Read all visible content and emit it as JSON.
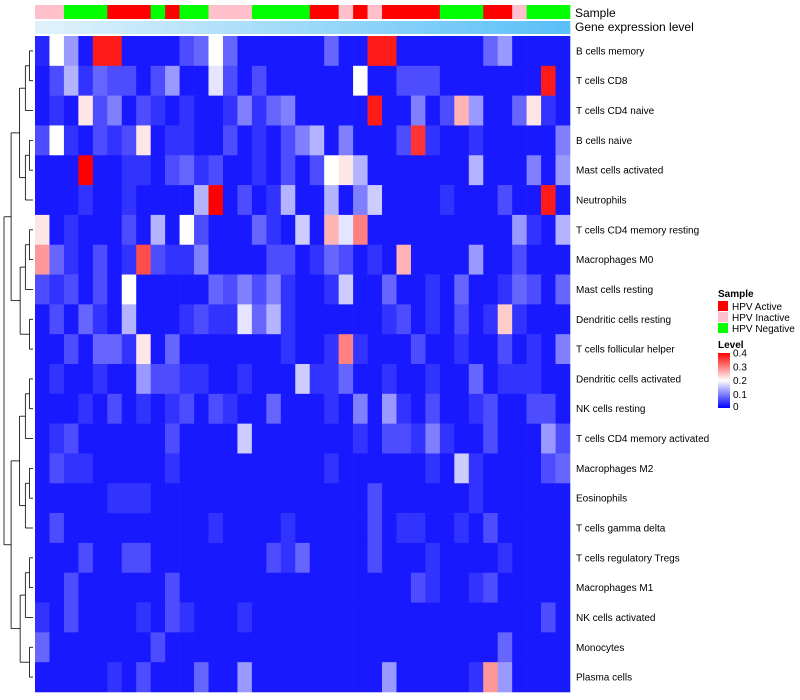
{
  "chart_data": {
    "type": "heatmap",
    "title": "",
    "rows": [
      "B cells memory",
      "T cells CD8",
      "T cells CD4 naive",
      "B cells naive",
      "Mast cells activated",
      "Neutrophils",
      "T cells CD4 memory resting",
      "Macrophages M0",
      "Mast cells resting",
      "Dendritic cells resting",
      "T cells follicular helper",
      "Dendritic cells activated",
      "NK cells resting",
      "T cells CD4 memory activated",
      "Macrophages M2",
      "Eosinophils",
      "T cells gamma delta",
      "T cells regulatory  Tregs",
      "Macrophages M1",
      "NK cells activated",
      "Monocytes",
      "Plasma cells"
    ],
    "annotation_tracks": [
      {
        "name": "Sample",
        "values": [
          "HPV Inactive",
          "HPV Inactive",
          "HPV Negative",
          "HPV Negative",
          "HPV Negative",
          "HPV Active",
          "HPV Active",
          "HPV Active",
          "HPV Negative",
          "HPV Active",
          "HPV Negative",
          "HPV Negative",
          "HPV Inactive",
          "HPV Inactive",
          "HPV Inactive",
          "HPV Negative",
          "HPV Negative",
          "HPV Negative",
          "HPV Negative",
          "HPV Active",
          "HPV Active",
          "HPV Inactive",
          "HPV Active",
          "HPV Inactive",
          "HPV Active",
          "HPV Active",
          "HPV Active",
          "HPV Active",
          "HPV Negative",
          "HPV Negative",
          "HPV Negative",
          "HPV Active",
          "HPV Active",
          "HPV Inactive",
          "HPV Negative",
          "HPV Negative",
          "HPV Negative"
        ]
      },
      {
        "name": "Gene expression level",
        "values": [
          0.9,
          0.88,
          0.86,
          0.84,
          0.82,
          0.8,
          0.78,
          0.76,
          0.74,
          0.72,
          0.7,
          0.68,
          0.66,
          0.64,
          0.62,
          0.6,
          0.58,
          0.56,
          0.54,
          0.52,
          0.5,
          0.48,
          0.46,
          0.44,
          0.42,
          0.4,
          0.38,
          0.36,
          0.34,
          0.32,
          0.3,
          0.28,
          0.26,
          0.24,
          0.22,
          0.2,
          0.18
        ]
      }
    ],
    "values": [
      [
        0.03,
        0.2,
        0.12,
        0.02,
        0.38,
        0.38,
        0.02,
        0.02,
        0.02,
        0.02,
        0.06,
        0.08,
        0.2,
        0.08,
        0.02,
        0.02,
        0.02,
        0.02,
        0.02,
        0.02,
        0.08,
        0.02,
        0.02,
        0.38,
        0.38,
        0.02,
        0.02,
        0.02,
        0.02,
        0.02,
        0.02,
        0.08,
        0.12,
        0.02,
        0.02,
        0.02,
        0.02
      ],
      [
        0.02,
        0.06,
        0.14,
        0.04,
        0.08,
        0.06,
        0.06,
        0.02,
        0.06,
        0.12,
        0.02,
        0.02,
        0.18,
        0.06,
        0.02,
        0.06,
        0.02,
        0.02,
        0.02,
        0.02,
        0.02,
        0.02,
        0.2,
        0.02,
        0.02,
        0.06,
        0.06,
        0.06,
        0.02,
        0.02,
        0.02,
        0.02,
        0.02,
        0.02,
        0.02,
        0.38,
        0.02
      ],
      [
        0.02,
        0.04,
        0.02,
        0.22,
        0.06,
        0.1,
        0.02,
        0.06,
        0.04,
        0.02,
        0.04,
        0.02,
        0.02,
        0.04,
        0.1,
        0.04,
        0.08,
        0.1,
        0.02,
        0.02,
        0.02,
        0.02,
        0.02,
        0.38,
        0.02,
        0.02,
        0.1,
        0.02,
        0.06,
        0.26,
        0.12,
        0.02,
        0.02,
        0.08,
        0.22,
        0.04,
        0.02
      ],
      [
        0.06,
        0.2,
        0.04,
        0.02,
        0.06,
        0.04,
        0.06,
        0.22,
        0.02,
        0.04,
        0.04,
        0.02,
        0.02,
        0.06,
        0.02,
        0.04,
        0.02,
        0.06,
        0.1,
        0.14,
        0.02,
        0.1,
        0.02,
        0.02,
        0.02,
        0.06,
        0.36,
        0.04,
        0.02,
        0.02,
        0.04,
        0.02,
        0.02,
        0.02,
        0.02,
        0.02,
        0.1
      ],
      [
        0.02,
        0.02,
        0.02,
        0.4,
        0.02,
        0.02,
        0.04,
        0.04,
        0.02,
        0.06,
        0.08,
        0.04,
        0.06,
        0.02,
        0.02,
        0.04,
        0.02,
        0.06,
        0.02,
        0.06,
        0.2,
        0.22,
        0.14,
        0.02,
        0.02,
        0.02,
        0.02,
        0.02,
        0.02,
        0.02,
        0.14,
        0.02,
        0.02,
        0.02,
        0.1,
        0.02,
        0.12
      ],
      [
        0.02,
        0.02,
        0.02,
        0.04,
        0.02,
        0.02,
        0.04,
        0.02,
        0.02,
        0.02,
        0.02,
        0.14,
        0.4,
        0.02,
        0.06,
        0.02,
        0.04,
        0.14,
        0.02,
        0.02,
        0.14,
        0.02,
        0.1,
        0.16,
        0.02,
        0.02,
        0.02,
        0.02,
        0.04,
        0.02,
        0.02,
        0.02,
        0.06,
        0.02,
        0.02,
        0.38,
        0.02
      ],
      [
        0.22,
        0.02,
        0.04,
        0.02,
        0.02,
        0.02,
        0.06,
        0.02,
        0.14,
        0.02,
        0.2,
        0.06,
        0.02,
        0.02,
        0.02,
        0.08,
        0.04,
        0.02,
        0.16,
        0.02,
        0.26,
        0.18,
        0.3,
        0.02,
        0.02,
        0.02,
        0.02,
        0.02,
        0.02,
        0.02,
        0.02,
        0.02,
        0.02,
        0.12,
        0.04,
        0.02,
        0.14
      ],
      [
        0.28,
        0.08,
        0.04,
        0.02,
        0.06,
        0.02,
        0.04,
        0.34,
        0.06,
        0.04,
        0.04,
        0.1,
        0.02,
        0.02,
        0.02,
        0.02,
        0.06,
        0.06,
        0.02,
        0.04,
        0.08,
        0.06,
        0.02,
        0.04,
        0.02,
        0.26,
        0.02,
        0.02,
        0.02,
        0.02,
        0.12,
        0.02,
        0.02,
        0.06,
        0.02,
        0.02,
        0.02
      ],
      [
        0.06,
        0.04,
        0.06,
        0.02,
        0.06,
        0.02,
        0.2,
        0.02,
        0.02,
        0.02,
        0.02,
        0.02,
        0.08,
        0.06,
        0.1,
        0.06,
        0.1,
        0.04,
        0.02,
        0.02,
        0.04,
        0.16,
        0.02,
        0.02,
        0.08,
        0.02,
        0.02,
        0.04,
        0.02,
        0.08,
        0.02,
        0.02,
        0.04,
        0.08,
        0.06,
        0.02,
        0.08
      ],
      [
        0.02,
        0.06,
        0.02,
        0.08,
        0.04,
        0.02,
        0.14,
        0.02,
        0.02,
        0.02,
        0.04,
        0.06,
        0.04,
        0.04,
        0.18,
        0.08,
        0.14,
        0.04,
        0.02,
        0.02,
        0.02,
        0.02,
        0.02,
        0.02,
        0.04,
        0.06,
        0.02,
        0.04,
        0.02,
        0.06,
        0.02,
        0.04,
        0.24,
        0.04,
        0.02,
        0.02,
        0.02
      ],
      [
        0.02,
        0.02,
        0.06,
        0.02,
        0.08,
        0.08,
        0.04,
        0.22,
        0.02,
        0.08,
        0.02,
        0.02,
        0.02,
        0.02,
        0.02,
        0.02,
        0.02,
        0.04,
        0.02,
        0.02,
        0.04,
        0.3,
        0.04,
        0.02,
        0.02,
        0.02,
        0.06,
        0.02,
        0.02,
        0.04,
        0.02,
        0.02,
        0.06,
        0.02,
        0.04,
        0.02,
        0.1
      ],
      [
        0.02,
        0.04,
        0.02,
        0.02,
        0.04,
        0.02,
        0.02,
        0.12,
        0.06,
        0.06,
        0.04,
        0.04,
        0.02,
        0.02,
        0.04,
        0.02,
        0.02,
        0.02,
        0.16,
        0.04,
        0.04,
        0.08,
        0.02,
        0.02,
        0.04,
        0.02,
        0.02,
        0.04,
        0.02,
        0.02,
        0.08,
        0.02,
        0.04,
        0.04,
        0.04,
        0.02,
        0.02
      ],
      [
        0.02,
        0.02,
        0.02,
        0.04,
        0.02,
        0.06,
        0.02,
        0.04,
        0.02,
        0.04,
        0.06,
        0.02,
        0.06,
        0.04,
        0.02,
        0.02,
        0.08,
        0.02,
        0.02,
        0.02,
        0.04,
        0.02,
        0.1,
        0.02,
        0.12,
        0.04,
        0.02,
        0.06,
        0.02,
        0.02,
        0.04,
        0.06,
        0.02,
        0.02,
        0.06,
        0.06,
        0.02
      ],
      [
        0.02,
        0.04,
        0.06,
        0.02,
        0.02,
        0.02,
        0.02,
        0.02,
        0.02,
        0.06,
        0.02,
        0.02,
        0.02,
        0.02,
        0.16,
        0.02,
        0.02,
        0.02,
        0.02,
        0.02,
        0.02,
        0.02,
        0.04,
        0.02,
        0.06,
        0.06,
        0.04,
        0.1,
        0.04,
        0.02,
        0.02,
        0.06,
        0.02,
        0.02,
        0.02,
        0.12,
        0.06
      ],
      [
        0.02,
        0.06,
        0.04,
        0.04,
        0.02,
        0.02,
        0.02,
        0.02,
        0.02,
        0.04,
        0.02,
        0.02,
        0.02,
        0.02,
        0.02,
        0.02,
        0.02,
        0.02,
        0.02,
        0.02,
        0.04,
        0.02,
        0.02,
        0.02,
        0.02,
        0.02,
        0.02,
        0.04,
        0.02,
        0.16,
        0.04,
        0.02,
        0.02,
        0.02,
        0.02,
        0.06,
        0.08
      ],
      [
        0.02,
        0.02,
        0.02,
        0.02,
        0.02,
        0.04,
        0.04,
        0.04,
        0.02,
        0.02,
        0.02,
        0.02,
        0.02,
        0.02,
        0.02,
        0.02,
        0.02,
        0.02,
        0.02,
        0.02,
        0.02,
        0.02,
        0.02,
        0.06,
        0.02,
        0.02,
        0.02,
        0.02,
        0.02,
        0.02,
        0.04,
        0.02,
        0.02,
        0.02,
        0.02,
        0.02,
        0.02
      ],
      [
        0.02,
        0.06,
        0.02,
        0.02,
        0.02,
        0.02,
        0.02,
        0.02,
        0.02,
        0.02,
        0.02,
        0.02,
        0.04,
        0.02,
        0.02,
        0.02,
        0.02,
        0.04,
        0.02,
        0.02,
        0.02,
        0.02,
        0.02,
        0.06,
        0.02,
        0.04,
        0.04,
        0.02,
        0.02,
        0.04,
        0.02,
        0.06,
        0.02,
        0.02,
        0.02,
        0.02,
        0.02
      ],
      [
        0.02,
        0.02,
        0.02,
        0.06,
        0.02,
        0.02,
        0.06,
        0.06,
        0.02,
        0.02,
        0.02,
        0.02,
        0.02,
        0.02,
        0.02,
        0.02,
        0.06,
        0.04,
        0.08,
        0.02,
        0.02,
        0.02,
        0.02,
        0.06,
        0.02,
        0.02,
        0.02,
        0.04,
        0.02,
        0.02,
        0.02,
        0.02,
        0.04,
        0.02,
        0.02,
        0.02,
        0.02
      ],
      [
        0.02,
        0.02,
        0.06,
        0.02,
        0.02,
        0.02,
        0.02,
        0.02,
        0.02,
        0.06,
        0.02,
        0.02,
        0.02,
        0.02,
        0.02,
        0.02,
        0.02,
        0.02,
        0.02,
        0.02,
        0.02,
        0.02,
        0.02,
        0.02,
        0.02,
        0.02,
        0.06,
        0.04,
        0.02,
        0.02,
        0.04,
        0.06,
        0.02,
        0.02,
        0.02,
        0.02,
        0.02
      ],
      [
        0.04,
        0.02,
        0.06,
        0.02,
        0.02,
        0.02,
        0.02,
        0.04,
        0.02,
        0.06,
        0.04,
        0.02,
        0.02,
        0.02,
        0.04,
        0.02,
        0.02,
        0.02,
        0.02,
        0.02,
        0.02,
        0.02,
        0.02,
        0.02,
        0.02,
        0.02,
        0.02,
        0.02,
        0.02,
        0.02,
        0.02,
        0.02,
        0.02,
        0.02,
        0.02,
        0.06,
        0.02
      ],
      [
        0.08,
        0.02,
        0.02,
        0.02,
        0.02,
        0.02,
        0.02,
        0.02,
        0.06,
        0.02,
        0.02,
        0.02,
        0.02,
        0.02,
        0.02,
        0.02,
        0.02,
        0.02,
        0.02,
        0.02,
        0.02,
        0.02,
        0.02,
        0.02,
        0.02,
        0.02,
        0.02,
        0.02,
        0.02,
        0.02,
        0.02,
        0.02,
        0.08,
        0.02,
        0.02,
        0.02,
        0.02
      ],
      [
        0.02,
        0.02,
        0.02,
        0.02,
        0.02,
        0.04,
        0.02,
        0.06,
        0.02,
        0.02,
        0.02,
        0.08,
        0.02,
        0.02,
        0.12,
        0.02,
        0.02,
        0.02,
        0.02,
        0.02,
        0.02,
        0.02,
        0.02,
        0.02,
        0.12,
        0.02,
        0.02,
        0.02,
        0.02,
        0.02,
        0.04,
        0.28,
        0.12,
        0.02,
        0.02,
        0.02,
        0.02
      ]
    ],
    "legend": {
      "placement": "right",
      "sample": {
        "title": "Sample",
        "entries": [
          {
            "label": "HPV Active",
            "color": "#ff0000"
          },
          {
            "label": "HPV Inactive",
            "color": "#ffc0cb"
          },
          {
            "label": "HPV Negative",
            "color": "#00ff00"
          }
        ]
      },
      "level": {
        "title": "Level",
        "ticks": [
          0.4,
          0.3,
          0.2,
          0.1,
          0
        ],
        "tick_labels": [
          "0.4",
          "0.3",
          "0.2",
          "0.1",
          "0"
        ],
        "colors": {
          "low": "#0000ff",
          "mid": "#ffffff",
          "high": "#ff0000"
        },
        "range": [
          0,
          0.4
        ]
      }
    },
    "expression_colors": {
      "low": "#5bc0f8",
      "high": "#dff2fb"
    }
  }
}
